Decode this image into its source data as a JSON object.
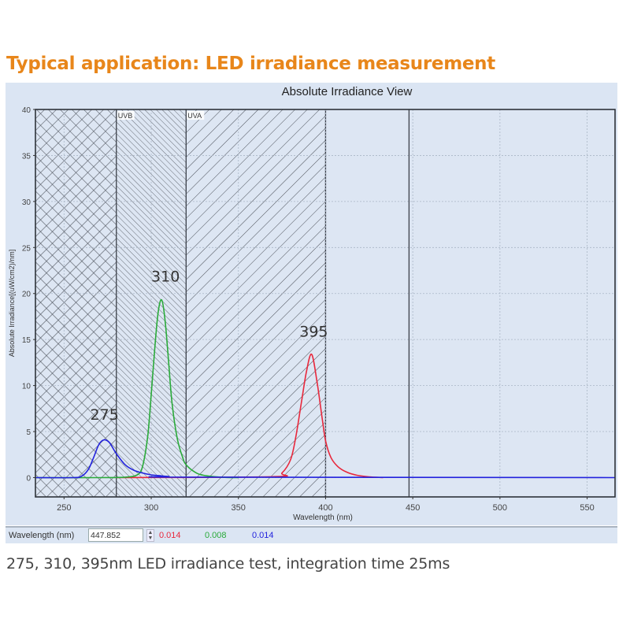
{
  "headline": "Typical application: LED irradiance measurement",
  "caption": "275, 310, 395nm LED irradiance test, integration time 25ms",
  "colors": {
    "headline": "#e8861a",
    "panel_bg": "#dbe5f3",
    "series_275": "#2222dd",
    "series_310": "#2aaa3a",
    "series_395": "#e8283c"
  },
  "statusbar": {
    "label": "Wavelength (nm)",
    "wavelength_value": "447.852",
    "readouts": [
      {
        "series": "395",
        "value": "0.014",
        "color": "#e8283c"
      },
      {
        "series": "310",
        "value": "0.008",
        "color": "#2aaa3a"
      },
      {
        "series": "275",
        "value": "0.014",
        "color": "#2222dd"
      }
    ]
  },
  "chart_data": {
    "type": "line",
    "title": "Absolute Irradiance View",
    "xlabel": "Wavelength (nm)",
    "ylabel": "Absolute Irradiance[(uW/cm2)/nm]",
    "xlim": [
      233.6,
      566
    ],
    "ylim": [
      -2.1,
      40
    ],
    "xticks": [
      250,
      300,
      350,
      400,
      450,
      500,
      550
    ],
    "yticks": [
      0,
      5,
      10,
      15,
      20,
      25,
      30,
      35,
      40
    ],
    "grid": true,
    "legend": "none",
    "regions": [
      {
        "label": "",
        "from": 233.6,
        "to": 280,
        "pattern": "crosshatch"
      },
      {
        "label": "UVB",
        "from": 280,
        "to": 320,
        "pattern": "dense-backslash"
      },
      {
        "label": "UVA",
        "from": 320,
        "to": 400,
        "pattern": "slash"
      }
    ],
    "cursor_wavelength": 447.852,
    "annotations": [
      {
        "text": "275",
        "x": 275,
        "y": 6.3
      },
      {
        "text": "310",
        "x": 310,
        "y": 21.3
      },
      {
        "text": "395",
        "x": 395,
        "y": 15.3
      }
    ],
    "series": [
      {
        "name": "275",
        "color": "#2222dd",
        "peak_wavelength": 273,
        "peak_value": 4.1,
        "x": [
          233.6,
          255,
          260,
          264,
          267,
          270,
          273,
          276,
          280,
          285,
          290,
          295,
          300,
          305,
          310,
          320,
          566
        ],
        "y": [
          0,
          0,
          0.15,
          0.9,
          2.2,
          3.6,
          4.1,
          3.8,
          2.6,
          1.4,
          0.8,
          0.5,
          0.3,
          0.2,
          0.12,
          0.05,
          0.0
        ]
      },
      {
        "name": "310",
        "color": "#2aaa3a",
        "peak_wavelength": 306,
        "peak_value": 19.3,
        "x": [
          233.6,
          270,
          285,
          292,
          295,
          298,
          300,
          302,
          304,
          306,
          308,
          310,
          312,
          315,
          318,
          320,
          325,
          330,
          340,
          350
        ],
        "y": [
          0,
          0,
          0.05,
          0.3,
          1.2,
          4.5,
          9.0,
          14.0,
          18.0,
          19.3,
          17.0,
          12.5,
          8.0,
          4.2,
          2.2,
          1.4,
          0.6,
          0.25,
          0.05,
          0
        ]
      },
      {
        "name": "395",
        "color": "#e8283c",
        "peak_wavelength": 392,
        "peak_value": 13.4,
        "x": [
          280,
          370,
          375,
          380,
          383,
          386,
          389,
          392,
          395,
          398,
          400,
          403,
          407,
          412,
          418,
          425,
          433
        ],
        "y": [
          0,
          0.1,
          0.5,
          2.0,
          4.5,
          8.0,
          11.5,
          13.4,
          10.5,
          6.5,
          4.0,
          2.2,
          1.2,
          0.6,
          0.25,
          0.08,
          0
        ]
      }
    ]
  }
}
